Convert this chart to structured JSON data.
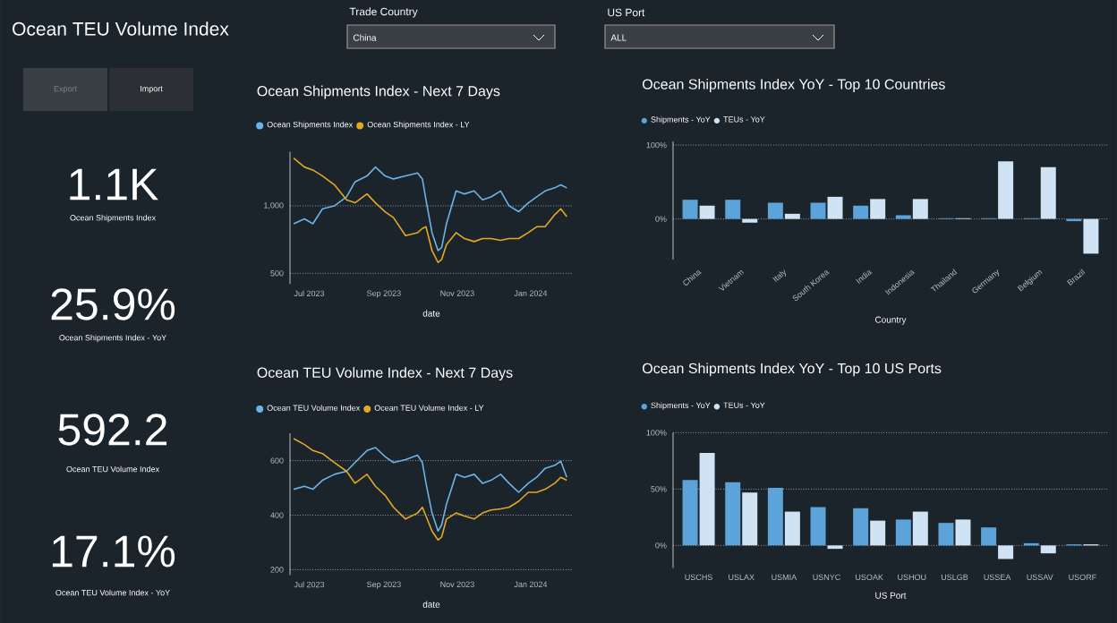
{
  "chart_data": [
    {
      "type": "other",
      "title": "Ocean TEU Volume Index",
      "annotations": [
        "Trade Country",
        "China",
        "US Port",
        "ALL",
        "Export",
        "Import",
        "1.1K",
        "Ocean Shipments Index",
        "25.9%",
        "Ocean Shipments Index - YoY",
        "592.2",
        "Ocean TEU Volume Index",
        "17.1%",
        "Ocean TEU Volume Index - YoY"
      ]
    },
    {
      "type": "line",
      "title": "Ocean Shipments Index - Next 7 Days",
      "xlabel": "date",
      "grid": "y",
      "legend": "top left",
      "x": [
        "2023-06-18",
        "2023-06-27",
        "2023-07-04",
        "2023-07-12",
        "2023-07-22",
        "2023-08-01",
        "2023-08-08",
        "2023-08-18",
        "2023-08-25",
        "2023-09-02",
        "2023-09-09",
        "2023-09-19",
        "2023-09-29",
        "2023-10-03",
        "2023-10-06",
        "2023-10-11",
        "2023-10-16",
        "2023-10-19",
        "2023-10-23",
        "2023-10-31",
        "2023-11-07",
        "2023-11-15",
        "2023-11-22",
        "2023-11-29",
        "2023-12-07",
        "2023-12-14",
        "2023-12-22",
        "2023-12-30",
        "2024-01-06",
        "2024-01-13",
        "2024-01-21",
        "2024-01-26",
        "2024-01-31"
      ],
      "xlim": [
        "2023-06-15",
        "2024-02-05"
      ],
      "xticks": [
        {
          "value": "2023-07-01",
          "label": "Jul 2023"
        },
        {
          "value": "2023-09-01",
          "label": "Sep 2023"
        },
        {
          "value": "2023-11-01",
          "label": "Nov 2023"
        },
        {
          "value": "2024-01-01",
          "label": "Jan 2024"
        }
      ],
      "ylim": [
        420,
        1400
      ],
      "yticks": [
        500,
        {
          "value": 1000,
          "label": "1,000"
        }
      ],
      "series": [
        {
          "name": "Ocean Shipments Index",
          "color": "#6cb4e8",
          "values": [
            867,
            903,
            867,
            978,
            1000,
            1066,
            1177,
            1221,
            1287,
            1221,
            1199,
            1221,
            1243,
            1199,
            1044,
            801,
            668,
            690,
            867,
            1110,
            1088,
            1110,
            1044,
            1066,
            1110,
            1000,
            956,
            1022,
            1066,
            1110,
            1133,
            1155,
            1133
          ]
        },
        {
          "name": "Ocean Shipments Index - LY",
          "color": "#e5a823",
          "values": [
            1354,
            1287,
            1265,
            1221,
            1155,
            1044,
            1022,
            1088,
            1022,
            956,
            912,
            779,
            801,
            832,
            845,
            668,
            580,
            602,
            713,
            801,
            757,
            735,
            757,
            757,
            744,
            757,
            757,
            801,
            845,
            845,
            934,
            978,
            920
          ]
        }
      ]
    },
    {
      "type": "bar",
      "title": "Ocean Shipments Index YoY - Top 10 Countries",
      "xlabel": "Country",
      "grid": "y",
      "legend": "top left",
      "categories": [
        "China",
        "Vietnam",
        "Italy",
        "South Korea",
        "India",
        "Indonesia",
        "Thailand",
        "Germany",
        "Belgium",
        "Brazil"
      ],
      "ylim": [
        -55,
        105
      ],
      "yticks": [
        {
          "value": 0,
          "label": "0%"
        },
        {
          "value": 100,
          "label": "100%"
        }
      ],
      "series": [
        {
          "name": "Shipments - YoY",
          "color": "#5ba3d9",
          "values": [
            26,
            26,
            22,
            22,
            18,
            5,
            1,
            1,
            1,
            -3
          ]
        },
        {
          "name": "TEUs - YoY",
          "color": "#cfe3f5",
          "values": [
            18,
            -5,
            7,
            30,
            27,
            27,
            1,
            78,
            70,
            -47
          ]
        }
      ]
    },
    {
      "type": "line",
      "title": "Ocean TEU Volume Index - Next 7 Days",
      "xlabel": "date",
      "grid": "y",
      "legend": "top left",
      "x": [
        "2023-06-18",
        "2023-06-27",
        "2023-07-04",
        "2023-07-12",
        "2023-07-22",
        "2023-08-01",
        "2023-08-08",
        "2023-08-18",
        "2023-08-25",
        "2023-09-02",
        "2023-09-09",
        "2023-09-19",
        "2023-09-29",
        "2023-10-03",
        "2023-10-06",
        "2023-10-11",
        "2023-10-16",
        "2023-10-19",
        "2023-10-23",
        "2023-10-31",
        "2023-11-07",
        "2023-11-15",
        "2023-11-22",
        "2023-11-29",
        "2023-12-07",
        "2023-12-14",
        "2023-12-22",
        "2023-12-30",
        "2024-01-06",
        "2024-01-13",
        "2024-01-21",
        "2024-01-26",
        "2024-01-31"
      ],
      "xlim": [
        "2023-06-15",
        "2024-02-05"
      ],
      "xticks": [
        {
          "value": "2023-07-01",
          "label": "Jul 2023"
        },
        {
          "value": "2023-09-01",
          "label": "Sep 2023"
        },
        {
          "value": "2023-11-01",
          "label": "Nov 2023"
        },
        {
          "value": "2024-01-01",
          "label": "Jan 2024"
        }
      ],
      "ylim": [
        180,
        700
      ],
      "yticks": [
        200,
        400,
        600
      ],
      "series": [
        {
          "name": "Ocean TEU Volume Index",
          "color": "#6cb4e8",
          "values": [
            495,
            506,
            495,
            528,
            550,
            561,
            593,
            637,
            648,
            615,
            593,
            604,
            620,
            593,
            517,
            408,
            342,
            364,
            440,
            550,
            539,
            550,
            517,
            528,
            550,
            517,
            484,
            517,
            539,
            572,
            583,
            598,
            539
          ]
        },
        {
          "name": "Ocean TEU Volume Index - LY",
          "color": "#e5a823",
          "values": [
            681,
            659,
            637,
            626,
            593,
            561,
            517,
            550,
            506,
            473,
            429,
            386,
            408,
            429,
            397,
            342,
            309,
            320,
            386,
            408,
            397,
            386,
            408,
            419,
            423,
            429,
            451,
            484,
            484,
            495,
            517,
            539,
            528
          ]
        }
      ]
    },
    {
      "type": "bar",
      "title": "Ocean Shipments Index YoY - Top 10 US Ports",
      "xlabel": "US Port",
      "grid": "y",
      "legend": "top left",
      "categories": [
        "USCHS",
        "USLAX",
        "USMIA",
        "USNYC",
        "USOAK",
        "USHOU",
        "USLGB",
        "USSEA",
        "USSAV",
        "USORF"
      ],
      "ylim": [
        -20,
        100
      ],
      "yticks": [
        {
          "value": 0,
          "label": "0%"
        },
        {
          "value": 50,
          "label": "50%"
        },
        {
          "value": 100,
          "label": "100%"
        }
      ],
      "series": [
        {
          "name": "Shipments - YoY",
          "color": "#5ba3d9",
          "values": [
            58,
            56,
            51,
            34,
            33,
            23,
            20,
            16,
            2,
            1
          ]
        },
        {
          "name": "TEUs - YoY",
          "color": "#cfe3f5",
          "values": [
            82,
            47,
            30,
            -3,
            22,
            30,
            23,
            -12,
            -7,
            1
          ]
        }
      ]
    }
  ]
}
